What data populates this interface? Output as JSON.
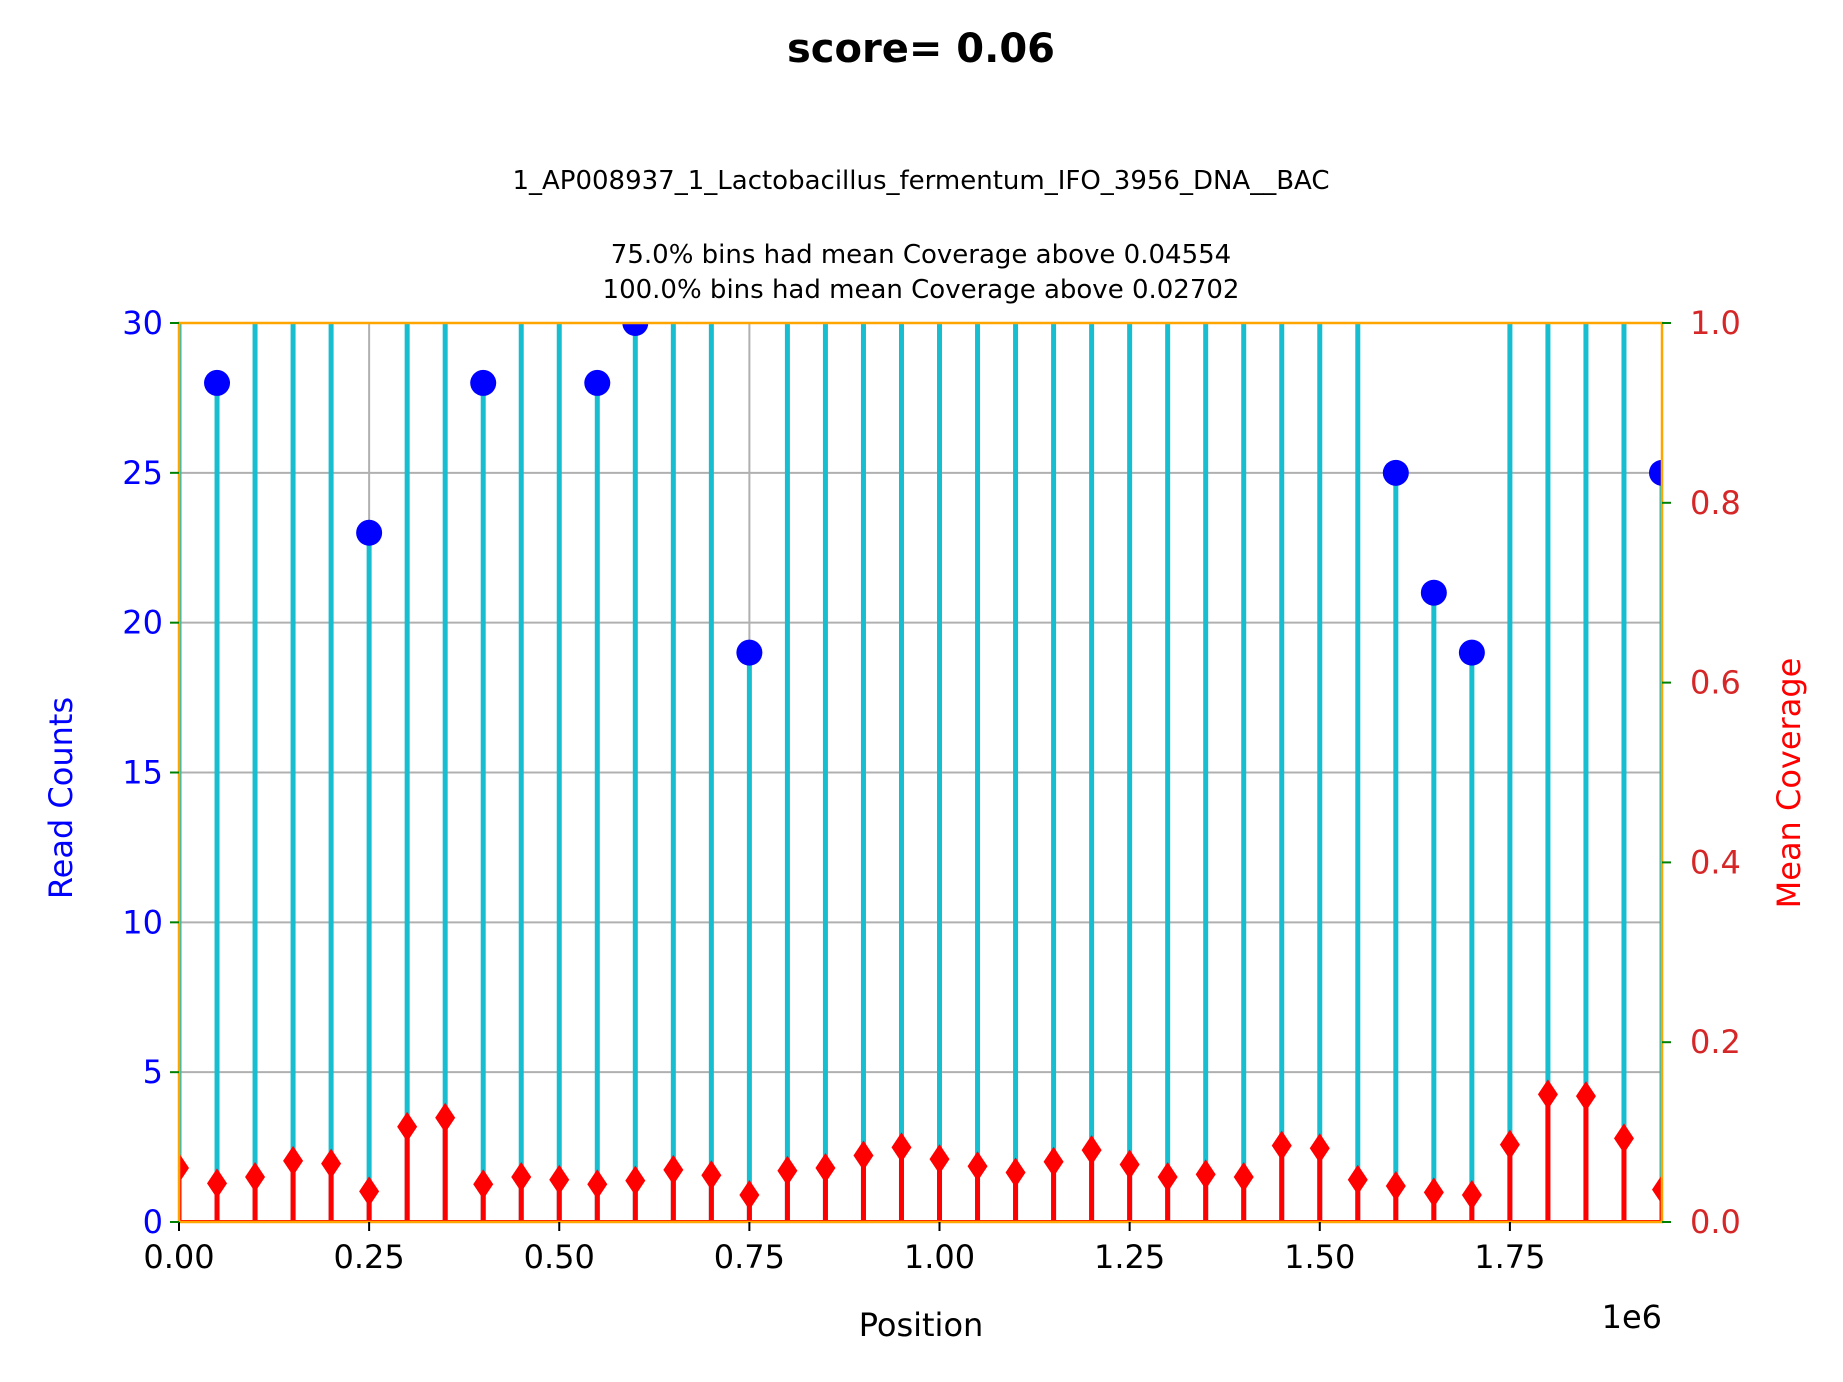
{
  "chart_data": {
    "type": "stem",
    "title": "score= 0.06",
    "subtitle_lines": [
      "1_AP008937_1_Lactobacillus_fermentum_IFO_3956_DNA__BAC",
      "",
      "75.0% bins had mean Coverage above 0.04554",
      "100.0% bins had mean Coverage above 0.02702"
    ],
    "xlabel": "Position",
    "x_offset_label": "1e6",
    "ylabel_left": "Read Counts",
    "ylabel_right": "Mean Coverage",
    "xlim": [
      0,
      1950000
    ],
    "ylim_left": [
      0,
      30
    ],
    "ylim_right": [
      0,
      1.0
    ],
    "x_ticks": [
      "0.00",
      "0.25",
      "0.50",
      "0.75",
      "1.00",
      "1.25",
      "1.50",
      "1.75"
    ],
    "x_tick_values": [
      0,
      250000,
      500000,
      750000,
      1000000,
      1250000,
      1500000,
      1750000
    ],
    "y_left_ticks": [
      "0",
      "5",
      "10",
      "15",
      "20",
      "25",
      "30"
    ],
    "y_left_tick_values": [
      0,
      5,
      10,
      15,
      20,
      25,
      30
    ],
    "y_right_ticks": [
      "0.0",
      "0.2",
      "0.4",
      "0.6",
      "0.8",
      "1.0"
    ],
    "y_right_tick_values": [
      0,
      0.2,
      0.4,
      0.6,
      0.8,
      1.0
    ],
    "grid": true,
    "colors": {
      "read_stem": "#17becf",
      "read_marker": "#0000ff",
      "coverage": "#ff0000",
      "spine": "#ffa500",
      "grid": "#b0b0b0",
      "right_tick_mark": "#008000",
      "right_tick_label": "#d62728",
      "left_tick_label": "#0000ff"
    },
    "series": [
      {
        "name": "Read Counts",
        "axis": "left",
        "x": [
          0,
          50000,
          100000,
          150000,
          200000,
          250000,
          300000,
          350000,
          400000,
          450000,
          500000,
          550000,
          600000,
          650000,
          700000,
          750000,
          800000,
          850000,
          900000,
          950000,
          1000000,
          1050000,
          1100000,
          1150000,
          1200000,
          1250000,
          1300000,
          1350000,
          1400000,
          1450000,
          1500000,
          1550000,
          1600000,
          1650000,
          1700000,
          1750000,
          1800000,
          1850000,
          1900000,
          1950000
        ],
        "values": [
          32,
          28,
          32,
          32,
          32,
          23,
          32,
          32,
          28,
          32,
          32,
          28,
          30,
          32,
          32,
          19,
          32,
          32,
          32,
          32,
          32,
          32,
          32,
          32,
          32,
          32,
          32,
          32,
          32,
          32,
          32,
          32,
          25,
          21,
          19,
          32,
          32,
          32,
          32,
          25
        ]
      },
      {
        "name": "Mean Coverage",
        "axis": "right",
        "x": [
          0,
          50000,
          100000,
          150000,
          200000,
          250000,
          300000,
          350000,
          400000,
          450000,
          500000,
          550000,
          600000,
          650000,
          700000,
          750000,
          800000,
          850000,
          900000,
          950000,
          1000000,
          1050000,
          1100000,
          1150000,
          1200000,
          1250000,
          1300000,
          1350000,
          1400000,
          1450000,
          1500000,
          1550000,
          1600000,
          1650000,
          1700000,
          1750000,
          1800000,
          1850000,
          1900000,
          1950000
        ],
        "values": [
          0.06,
          0.043,
          0.05,
          0.068,
          0.065,
          0.034,
          0.106,
          0.116,
          0.042,
          0.05,
          0.047,
          0.042,
          0.046,
          0.058,
          0.052,
          0.03,
          0.057,
          0.06,
          0.074,
          0.083,
          0.07,
          0.062,
          0.055,
          0.067,
          0.08,
          0.064,
          0.05,
          0.053,
          0.05,
          0.085,
          0.082,
          0.047,
          0.04,
          0.033,
          0.03,
          0.086,
          0.142,
          0.14,
          0.093,
          0.036
        ]
      }
    ]
  }
}
